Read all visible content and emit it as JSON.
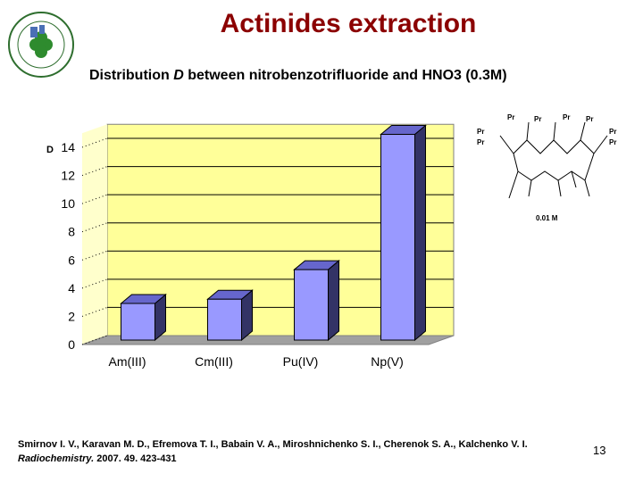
{
  "chart_data": {
    "type": "bar3d",
    "title": "Actinides extraction",
    "subtitle": [
      "Distribution ",
      "D",
      " between nitrobenzotrifluoride and HNO3 (0.3M)"
    ],
    "y_label": "D",
    "categories": [
      "Am(III)",
      "Cm(III)",
      "Pu(IV)",
      "Np(V)"
    ],
    "values": [
      2.6,
      2.9,
      5.0,
      14.6
    ],
    "color": "#9999ff",
    "ylim": [
      0,
      15
    ],
    "yticks": [
      0,
      2,
      4,
      6,
      8,
      10,
      12,
      14
    ],
    "grid": true
  },
  "structure": {
    "labels": [
      "Pr",
      "Pr",
      "Pr",
      "Pr",
      "Pr",
      "Pr",
      "Pr",
      "Pr"
    ],
    "concentration": "0.01 M"
  },
  "citation": {
    "authors": "Smirnov I. V., Karavan M. D., Efremova T. I., Babain V. A., Miroshnichenko S. I., Cherenok S. A., Kalchenko V. I.",
    "journal": "Radiochemistry.",
    "details": "2007. 49. 423-431"
  },
  "page_number": "13"
}
